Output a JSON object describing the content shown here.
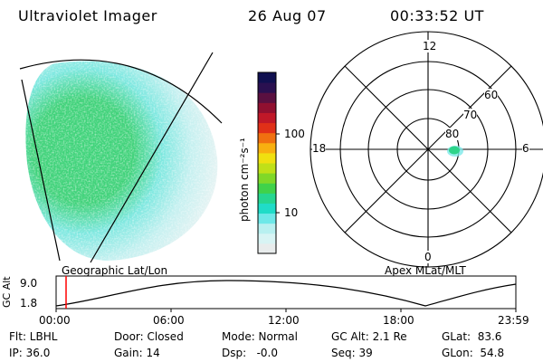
{
  "header": {
    "instrument": "Ultraviolet Imager",
    "date": "26 Aug 07",
    "time": "00:33:52 UT"
  },
  "colorbar": {
    "unit_label": "photon cm⁻²s⁻¹",
    "ticks": [
      "100",
      "10"
    ],
    "colors": [
      "#e8ecec",
      "#d8f4f4",
      "#b8f0f0",
      "#6ee8e8",
      "#20dcc8",
      "#26d690",
      "#40d24a",
      "#80d828",
      "#c0e018",
      "#f0e010",
      "#f8b010",
      "#f07010",
      "#e03018",
      "#c01828",
      "#901030",
      "#5a1040",
      "#2a1050",
      "#101050"
    ]
  },
  "polar_plot": {
    "mlt_labels": [
      "12",
      "6",
      "0",
      "18"
    ],
    "lat_labels": [
      "60",
      "70",
      "80"
    ]
  },
  "map_labels": {
    "left": "Geographic Lat/Lon",
    "right": "Apex MLat/MLT"
  },
  "orbit_plot": {
    "ylabel": "GC Alt",
    "yticks": [
      "9.0",
      "1.8"
    ],
    "xticks": [
      "00:00",
      "06:00",
      "12:00",
      "18:00",
      "23:59"
    ],
    "current_time_marker": "00:33:52",
    "marker_color": "#ff0000"
  },
  "status": {
    "filter": "Flt: LBHL",
    "ip": "IP: 36.0",
    "door": "Door: Closed",
    "gain": "Gain: 14",
    "mode": "Mode: Normal",
    "dsp": "Dsp:   -0.0",
    "gcalt": "GC Alt: 2.1 Re",
    "seq": "Seq: 39",
    "glat": "GLat:  83.6",
    "glon": "GLon:  54.8"
  }
}
